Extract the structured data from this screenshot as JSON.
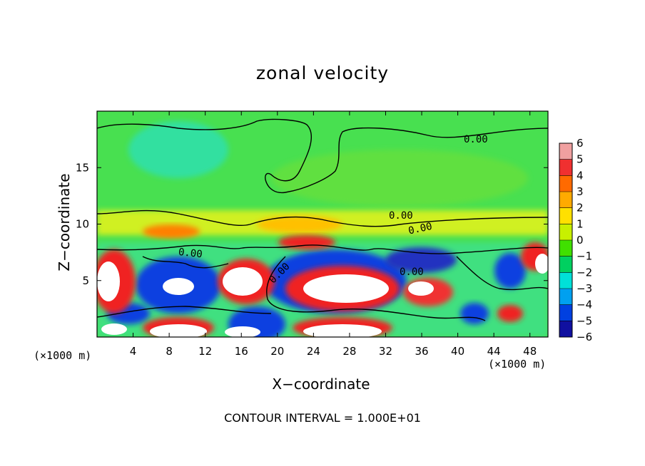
{
  "chart_data": {
    "type": "heatmap",
    "title": "zonal velocity",
    "xlabel": "X−coordinate",
    "ylabel": "Z−coordinate",
    "x_unit_left": "(×1000 m)",
    "x_unit_right": "(×1000 m)",
    "x_ticks": [
      "4",
      "8",
      "12",
      "16",
      "20",
      "24",
      "28",
      "32",
      "36",
      "40",
      "44",
      "48"
    ],
    "x_tick_values": [
      4,
      8,
      12,
      16,
      20,
      24,
      28,
      32,
      36,
      40,
      44,
      48
    ],
    "y_ticks": [
      "5",
      "10",
      "15"
    ],
    "y_tick_values": [
      5,
      10,
      15
    ],
    "xlim": [
      0,
      50
    ],
    "ylim": [
      0,
      20
    ],
    "colorbar": {
      "labels": [
        "6",
        "5",
        "4",
        "3",
        "2",
        "1",
        "0",
        "−1",
        "−2",
        "−3",
        "−4",
        "−5",
        "−6"
      ],
      "values": [
        6,
        5,
        4,
        3,
        2,
        1,
        0,
        -1,
        -2,
        -3,
        -4,
        -5,
        -6
      ],
      "colors": [
        "#f0a0a0",
        "#f03030",
        "#ff6a00",
        "#ffaa00",
        "#ffe000",
        "#c8f000",
        "#40e000",
        "#00d060",
        "#00e0d8",
        "#00a0f0",
        "#0040e0",
        "#1010a0",
        "#800080"
      ]
    },
    "contour_labels": [
      "0.00",
      "0.00",
      "0.00",
      "0.00",
      "0.00",
      "0.00"
    ],
    "contour_note": "CONTOUR INTERVAL = 1.000E+01"
  },
  "colors": {
    "background": "#40e060",
    "blob_white": "#ffffff",
    "blob_red": "#f02020",
    "blob_blue": "#1040e0",
    "blob_yellow": "#f0f020",
    "blob_cyan": "#30e0d0"
  }
}
